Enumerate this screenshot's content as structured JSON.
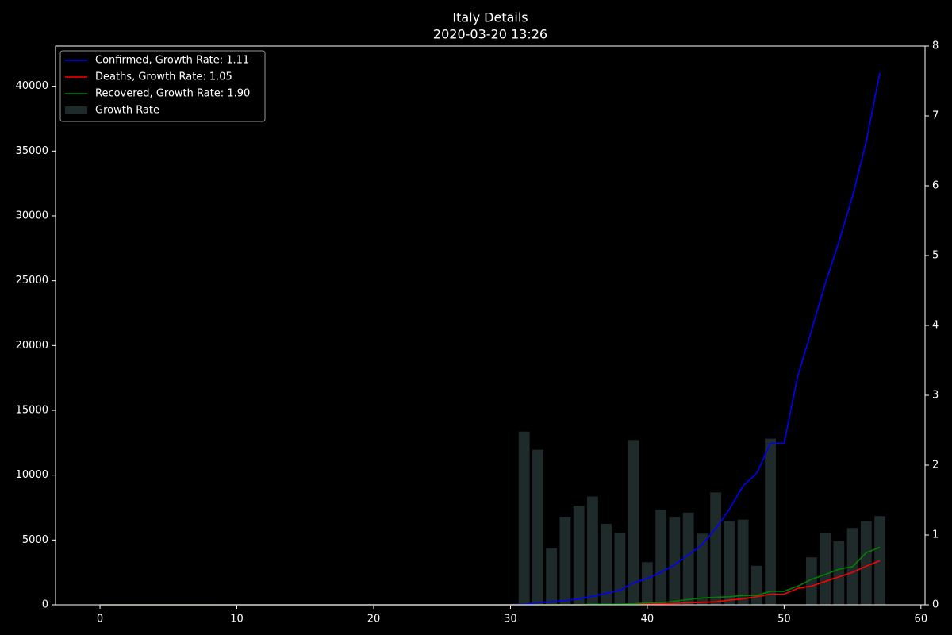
{
  "chart_data": {
    "type": "line",
    "title": "Italy Details",
    "subtitle": "2020-03-20 13:26",
    "x": [
      0,
      1,
      2,
      3,
      4,
      5,
      6,
      7,
      8,
      9,
      10,
      11,
      12,
      13,
      14,
      15,
      16,
      17,
      18,
      19,
      20,
      21,
      22,
      23,
      24,
      25,
      26,
      27,
      28,
      29,
      30,
      31,
      32,
      33,
      34,
      35,
      36,
      37,
      38,
      39,
      40,
      41,
      42,
      43,
      44,
      45,
      46,
      47,
      48,
      49,
      50,
      51,
      52,
      53,
      54,
      55,
      56,
      57
    ],
    "series": [
      {
        "name": "Confirmed, Growth Rate: 1.11",
        "color": "#0000ff",
        "values": [
          0,
          0,
          0,
          0,
          0,
          0,
          0,
          0,
          0,
          2,
          2,
          2,
          2,
          2,
          2,
          2,
          2,
          2,
          2,
          2,
          2,
          2,
          2,
          2,
          2,
          2,
          2,
          2,
          2,
          2,
          20,
          62,
          155,
          229,
          322,
          453,
          655,
          888,
          1128,
          1694,
          2036,
          2502,
          3089,
          3858,
          4636,
          5883,
          7375,
          9172,
          10149,
          12462,
          12462,
          17660,
          21157,
          24747,
          27980,
          31506,
          35713,
          41035
        ]
      },
      {
        "name": "Deaths, Growth Rate: 1.05",
        "color": "#ff0000",
        "values": [
          0,
          0,
          0,
          0,
          0,
          0,
          0,
          0,
          0,
          0,
          0,
          0,
          0,
          0,
          0,
          0,
          0,
          0,
          0,
          0,
          0,
          0,
          0,
          0,
          0,
          0,
          0,
          0,
          0,
          0,
          1,
          2,
          3,
          7,
          10,
          12,
          17,
          21,
          29,
          34,
          52,
          79,
          107,
          148,
          197,
          233,
          366,
          463,
          631,
          827,
          827,
          1266,
          1441,
          1809,
          2158,
          2503,
          2978,
          3405
        ]
      },
      {
        "name": "Recovered, Growth Rate: 1.90",
        "color": "#008000",
        "values": [
          0,
          0,
          0,
          0,
          0,
          0,
          0,
          0,
          0,
          0,
          0,
          0,
          0,
          0,
          0,
          0,
          0,
          0,
          0,
          0,
          0,
          0,
          0,
          0,
          0,
          0,
          0,
          0,
          0,
          0,
          0,
          1,
          2,
          1,
          1,
          3,
          45,
          46,
          46,
          83,
          149,
          160,
          276,
          414,
          523,
          589,
          622,
          724,
          724,
          1045,
          1045,
          1439,
          1966,
          2335,
          2749,
          2941,
          4025,
          4440
        ]
      },
      {
        "name": "Growth Rate",
        "type": "bar",
        "axis": "y2",
        "color": "#1f2b2b",
        "x": [
          31,
          32,
          33,
          34,
          35,
          36,
          37,
          38,
          39,
          40,
          41,
          42,
          43,
          44,
          45,
          46,
          47,
          48,
          49,
          50,
          51,
          52,
          53,
          54,
          55,
          56,
          57
        ],
        "values": [
          2.48,
          2.22,
          0.81,
          1.26,
          1.42,
          1.55,
          1.16,
          1.03,
          2.36,
          0.61,
          1.36,
          1.26,
          1.32,
          1.02,
          1.61,
          1.2,
          1.22,
          0.56,
          2.38,
          null,
          null,
          0.68,
          1.03,
          0.91,
          1.1,
          1.2,
          1.27
        ]
      }
    ],
    "xlim": [
      -3.25,
      60.3
    ],
    "xticks": [
      0,
      10,
      20,
      30,
      40,
      50,
      60
    ],
    "ylim": [
      0,
      43100
    ],
    "yticks": [
      0,
      5000,
      10000,
      15000,
      20000,
      25000,
      30000,
      35000,
      40000
    ],
    "y2lim": [
      0,
      8
    ],
    "y2ticks": [
      0,
      1,
      2,
      3,
      4,
      5,
      6,
      7,
      8
    ],
    "legend": "upper left"
  }
}
